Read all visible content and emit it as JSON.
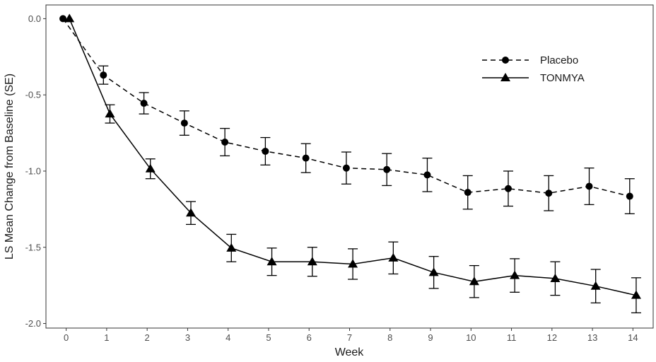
{
  "chart_data": {
    "type": "line",
    "xlabel": "Week",
    "ylabel": "LS Mean Change from Baseline (SE)",
    "xlim": [
      -0.5,
      14.5
    ],
    "ylim": [
      -2.03,
      0.09
    ],
    "x_ticks": [
      0,
      1,
      2,
      3,
      4,
      5,
      6,
      7,
      8,
      9,
      10,
      11,
      12,
      13,
      14
    ],
    "y_ticks": [
      0.0,
      -0.5,
      -1.0,
      -1.5,
      -2.0
    ],
    "y_tick_labels": [
      "0.0",
      "-0.5",
      "-1.0",
      "-1.5",
      "-2.0"
    ],
    "grid": false,
    "legend_position": "top-right",
    "series": [
      {
        "name": "Placebo",
        "line_style": "dashed",
        "marker": "circle",
        "x": [
          0,
          1,
          2,
          3,
          4,
          5,
          6,
          7,
          8,
          9,
          10,
          11,
          12,
          13,
          14
        ],
        "values": [
          0.0,
          -0.37,
          -0.555,
          -0.685,
          -0.81,
          -0.87,
          -0.915,
          -0.98,
          -0.99,
          -1.025,
          -1.14,
          -1.115,
          -1.145,
          -1.1,
          -1.165
        ],
        "se": [
          0,
          0.06,
          0.07,
          0.08,
          0.09,
          0.09,
          0.095,
          0.105,
          0.105,
          0.11,
          0.11,
          0.115,
          0.115,
          0.12,
          0.115
        ]
      },
      {
        "name": "TONMYA",
        "line_style": "solid",
        "marker": "triangle",
        "x": [
          0,
          1,
          2,
          3,
          4,
          5,
          6,
          7,
          8,
          9,
          10,
          11,
          12,
          13,
          14
        ],
        "values": [
          0.0,
          -0.625,
          -0.985,
          -1.275,
          -1.505,
          -1.595,
          -1.595,
          -1.61,
          -1.57,
          -1.665,
          -1.725,
          -1.685,
          -1.705,
          -1.755,
          -1.815
        ],
        "se": [
          0,
          0.06,
          0.065,
          0.075,
          0.09,
          0.09,
          0.095,
          0.1,
          0.105,
          0.105,
          0.105,
          0.11,
          0.11,
          0.11,
          0.115
        ]
      }
    ],
    "colors": {
      "line": "#000000",
      "panel_border": "#333333",
      "background": "#ffffff"
    }
  }
}
